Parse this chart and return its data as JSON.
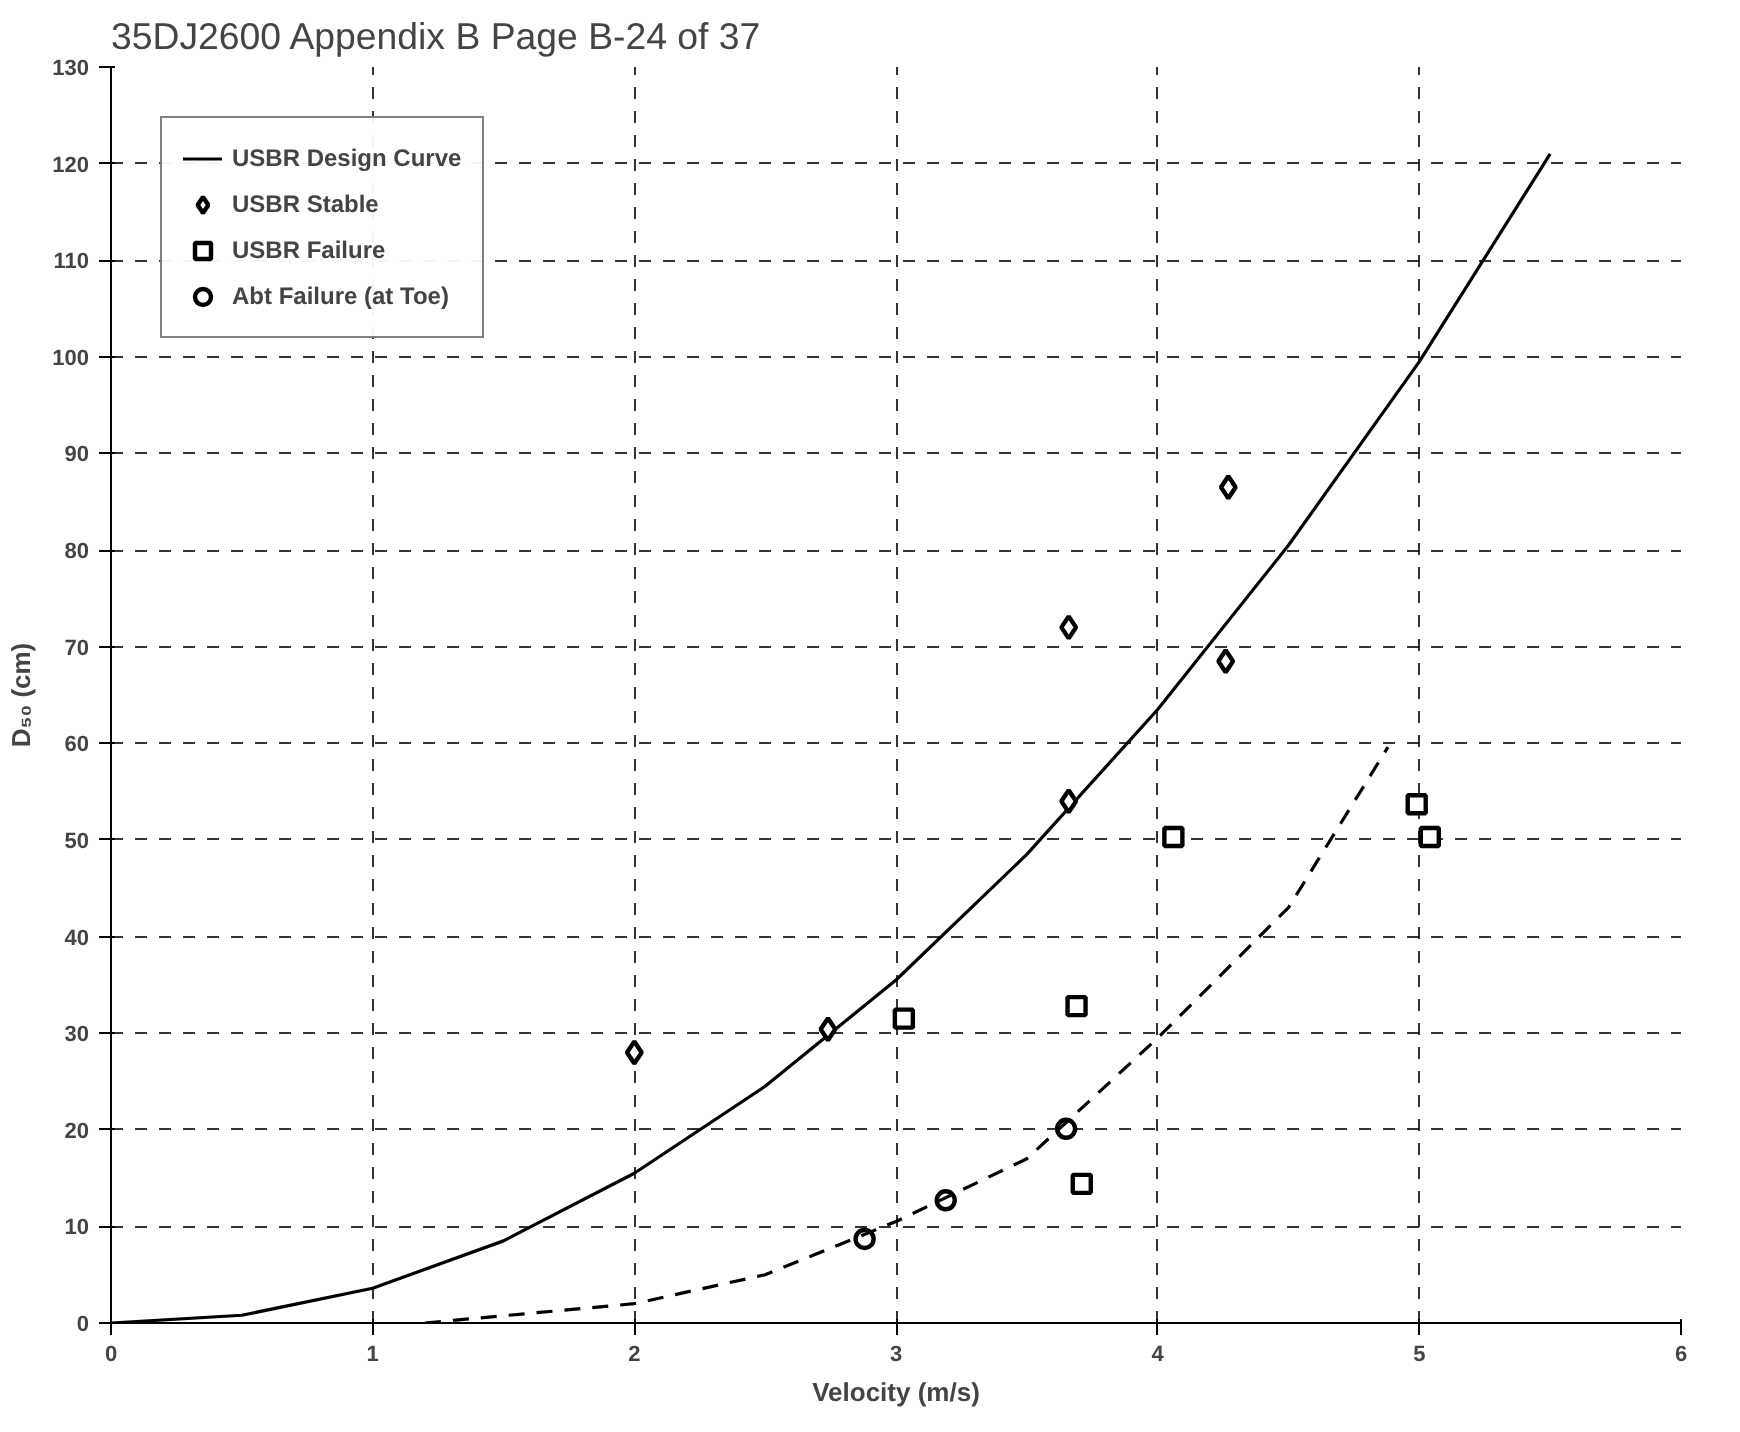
{
  "chart_data": {
    "type": "scatter",
    "xlabel": "Velocity (m/s)",
    "ylabel": "D₅₀ (cm)",
    "xlim": [
      0,
      6
    ],
    "ylim": [
      0,
      130
    ],
    "xticks": [
      0,
      1,
      2,
      3,
      4,
      5,
      6
    ],
    "yticks": [
      0,
      10,
      20,
      30,
      40,
      50,
      60,
      70,
      80,
      90,
      100,
      110,
      120,
      130
    ],
    "grid": true,
    "legend": "top left",
    "annotations": [
      "35DJ2600    Appendix B  Page B-24 of 37"
    ],
    "series": [
      {
        "name": "USBR Design Curve",
        "type": "line",
        "line_style": "solid",
        "marker": "none",
        "color": "#000000",
        "x": [
          0,
          0.5,
          1,
          1.5,
          2,
          2.5,
          3,
          3.5,
          4,
          4.5,
          5,
          5.5
        ],
        "values": [
          0,
          0.8,
          3.6,
          8.5,
          15.5,
          24.5,
          35.5,
          48.5,
          63.5,
          80.5,
          99.5,
          121
        ]
      },
      {
        "name": "USBR Stable",
        "marker": "diamond",
        "color": "#000000",
        "x": [
          2.0,
          2.74,
          3.66,
          3.66,
          4.26,
          4.27
        ],
        "values": [
          28,
          30.4,
          54,
          72,
          68.5,
          86.5
        ]
      },
      {
        "name": "USBR Failure",
        "marker": "square",
        "color": "#000000",
        "x": [
          3.03,
          3.69,
          3.71,
          4.06,
          4.99,
          5.04
        ],
        "values": [
          31.5,
          32.8,
          14.4,
          50.3,
          53.7,
          50.3
        ]
      },
      {
        "name": "Abt Failure (at Toe)",
        "marker": "circle",
        "color": "#000000",
        "x": [
          2.88,
          3.19,
          3.65
        ],
        "values": [
          8.7,
          12.7,
          20.1
        ]
      },
      {
        "type": "line",
        "line_style": "dashed",
        "marker": "none",
        "color": "#000000",
        "x": [
          1.2,
          2,
          2.5,
          3,
          3.5,
          4,
          4.5,
          4.88
        ],
        "values": [
          0,
          2,
          5,
          10.5,
          17,
          29.5,
          43,
          59.6
        ]
      }
    ]
  }
}
